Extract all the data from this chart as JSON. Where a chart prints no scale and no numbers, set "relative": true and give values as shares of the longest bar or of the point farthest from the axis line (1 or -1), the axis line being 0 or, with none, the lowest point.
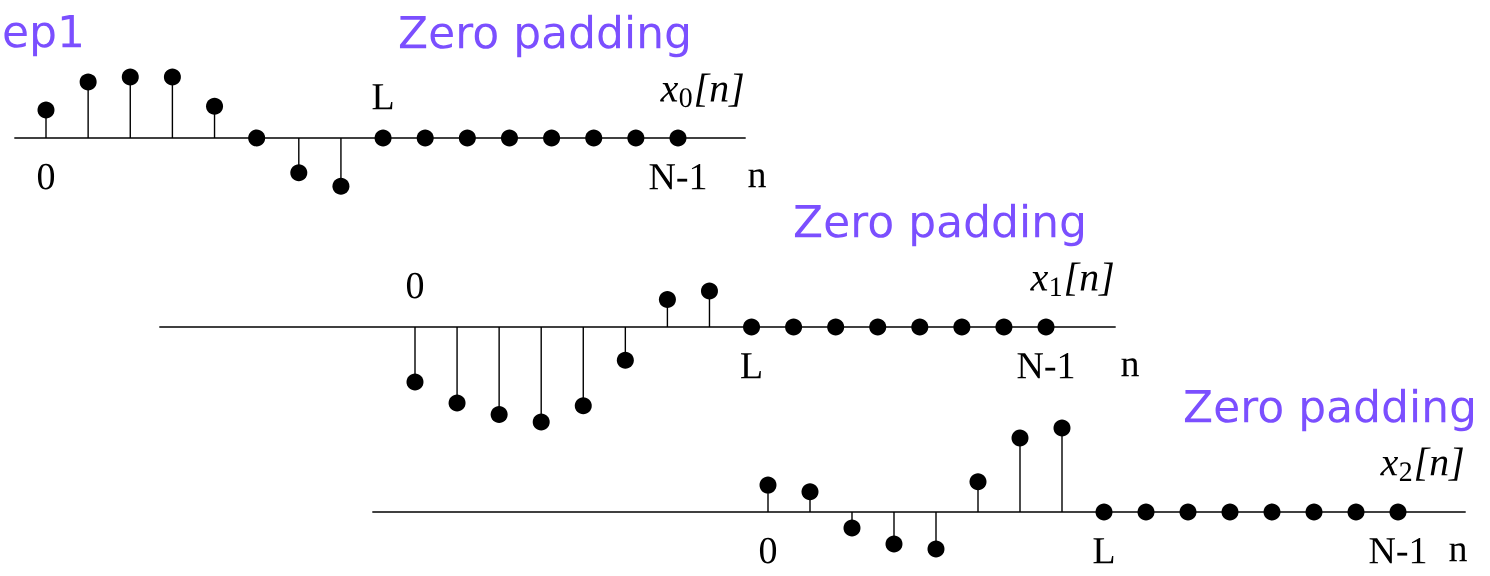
{
  "chart_data": [
    {
      "type": "lollipop",
      "title": "Zero padding",
      "xlabel": "n",
      "relative": true,
      "marker": "circle",
      "annotations": [
        "ep1"
      ],
      "categories": [
        "0",
        null,
        null,
        null,
        null,
        null,
        null,
        null,
        "L",
        null,
        null,
        null,
        null,
        null,
        null,
        "N-1"
      ],
      "series": [
        {
          "name": "x$_{0}$[n]",
          "color": "#000000",
          "values": [
            0.46,
            0.92,
            1,
            1,
            0.52,
            0,
            -0.57,
            -0.79,
            0,
            0,
            0,
            0,
            0,
            0,
            0,
            0
          ]
        }
      ]
    },
    {
      "type": "lollipop",
      "title": "Zero padding",
      "xlabel": "n",
      "relative": true,
      "marker": "circle",
      "categories": [
        "0",
        null,
        null,
        null,
        null,
        null,
        null,
        null,
        "L",
        null,
        null,
        null,
        null,
        null,
        null,
        "N-1"
      ],
      "series": [
        {
          "name": "x$_{1}$[n]",
          "color": "#000000",
          "values": [
            -0.58,
            -0.8,
            -0.92,
            -1,
            -0.83,
            -0.35,
            0.29,
            0.38,
            0,
            0,
            0,
            0,
            0,
            0,
            0,
            0
          ]
        }
      ]
    },
    {
      "type": "lollipop",
      "title": "Zero padding",
      "xlabel": "n",
      "relative": true,
      "marker": "circle",
      "categories": [
        "0",
        null,
        null,
        null,
        null,
        null,
        null,
        null,
        "L",
        null,
        null,
        null,
        null,
        null,
        null,
        "N-1"
      ],
      "series": [
        {
          "name": "x$_{2}$[n]",
          "color": "#000000",
          "values": [
            0.32,
            0.24,
            -0.19,
            -0.38,
            -0.44,
            0.36,
            0.88,
            1,
            0,
            0,
            0,
            0,
            0,
            0,
            0,
            0
          ]
        }
      ]
    }
  ]
}
